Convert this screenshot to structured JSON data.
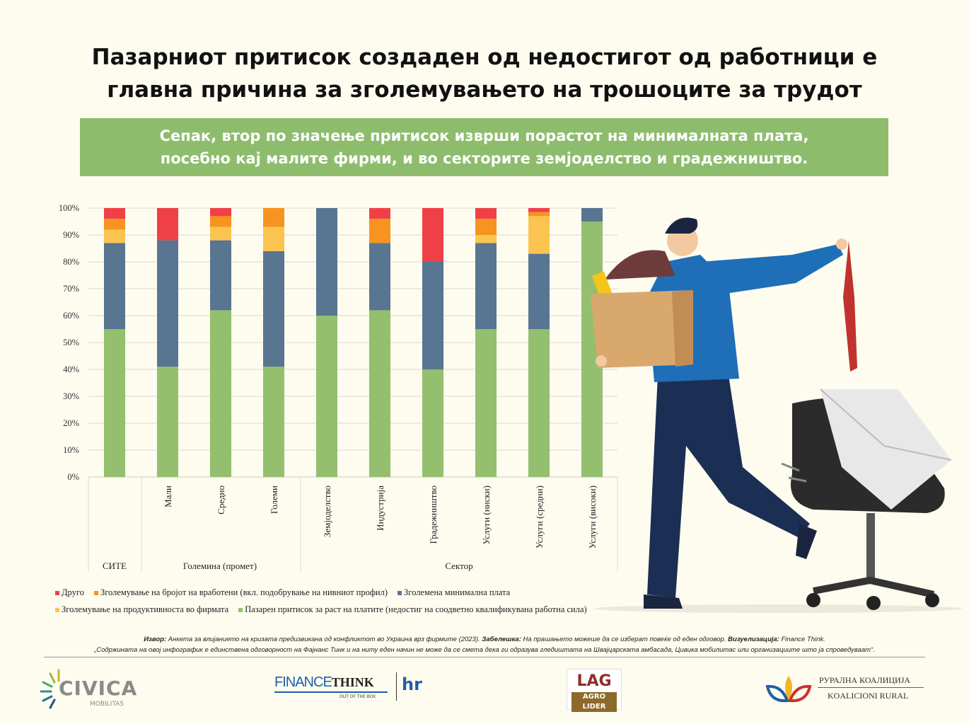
{
  "title_line1": "Пазарниот притисок создаден од недостигот од работници е",
  "title_line2": "главна причина за зголемувањето на трошоците за трудот",
  "banner_line1": "Сепак, втор по значење притисок изврши порастот на минималната плата,",
  "banner_line2": "посебно кај малите фирми, и во секторите земјоделство и градежништво.",
  "chart_data": {
    "type": "bar",
    "stacked": true,
    "categories": [
      "СИТЕ",
      "Мали",
      "Средно",
      "Големи",
      "Земјоделство",
      "Индустрија",
      "Градежништво",
      "Услуги (ниски)",
      "Услуги (средни)",
      "Услуги (високи)"
    ],
    "groups": [
      {
        "label": "СИТЕ",
        "span": 1
      },
      {
        "label": "Големина (промет)",
        "span": 3
      },
      {
        "label": "Сектор",
        "span": 6
      }
    ],
    "yticks": [
      "0%",
      "10%",
      "20%",
      "30%",
      "40%",
      "50%",
      "60%",
      "70%",
      "80%",
      "90%",
      "100%"
    ],
    "ylim": [
      0,
      100
    ],
    "grid": true,
    "legend_position": "bottom",
    "series": [
      {
        "name": "Пазарен притисок за раст на платите (недостиг на соодветно квалификувана работна сила)",
        "color": "#93bf6e",
        "values": [
          55,
          41,
          62,
          41,
          60,
          62,
          40,
          55,
          55,
          95
        ]
      },
      {
        "name": "Зголемена минимална плата",
        "color": "#587591",
        "values": [
          32,
          47,
          26,
          43,
          40,
          25,
          40,
          32,
          28,
          5
        ]
      },
      {
        "name": "Зголемување на продуктивноста во фирмата",
        "color": "#fbc451",
        "values": [
          5,
          0,
          5,
          9,
          0,
          0,
          0,
          3,
          14,
          0
        ]
      },
      {
        "name": "Зголемување на бројот на вработени (вкл. подобрување на нивниот профил)",
        "color": "#f6941f",
        "values": [
          4,
          0,
          4,
          7,
          0,
          9,
          0,
          6,
          1.5,
          0
        ]
      },
      {
        "name": "Друго",
        "color": "#ef4048",
        "values": [
          4,
          12,
          3,
          0,
          0,
          4,
          20,
          4,
          1.5,
          0
        ]
      }
    ]
  },
  "legend_row1": [
    {
      "label": "Друго",
      "color": "#ef4048"
    },
    {
      "label": "Зголемување на бројот на вработени (вкл. подобрување на нивниот профил)",
      "color": "#f6941f"
    },
    {
      "label": "Зголемена минимална плата",
      "color": "#587591"
    }
  ],
  "legend_row2": [
    {
      "label": "Зголемување на продуктивноста во фирмата",
      "color": "#fbc451"
    },
    {
      "label": "Пазарен притисок за раст на платите (недостиг на соодветно квалификувана работна сила)",
      "color": "#93bf6e"
    }
  ],
  "footer": {
    "source_label": "Извор:",
    "source_text": " Анкета за влијанието на кризата предизвикана од конфликтот во Украина врз фирмите (2023). ",
    "note_label": "Забелешка:",
    "note_text": " На прашањето можеше да се изберат повеќе од еден одговор. ",
    "viz_label": "Визуелизација:",
    "viz_text": " Finance Think.",
    "disclaimer": "„Содржината на овој инфографик е единствена одговорност на Фајнанс Тинк и на ниту еден начин не може да се смета дека ги одразува гледиштата на Швајцарската амбасада, Цивика мобилитас или организациите што ја спроведуваат“."
  },
  "logos": {
    "civica": "CIVICA",
    "civica_sub": "MOBILITAS",
    "finance": "FINANCE",
    "think": "THINK",
    "think_sub": "OUT OF THE BOX",
    "hr": "hr",
    "lag": "LAG",
    "agro": "AGRO LIDER",
    "rural_mk": "РУРАЛНА КОАЛИЦИЈА",
    "rural_al": "KOALICIONI RURAL"
  }
}
